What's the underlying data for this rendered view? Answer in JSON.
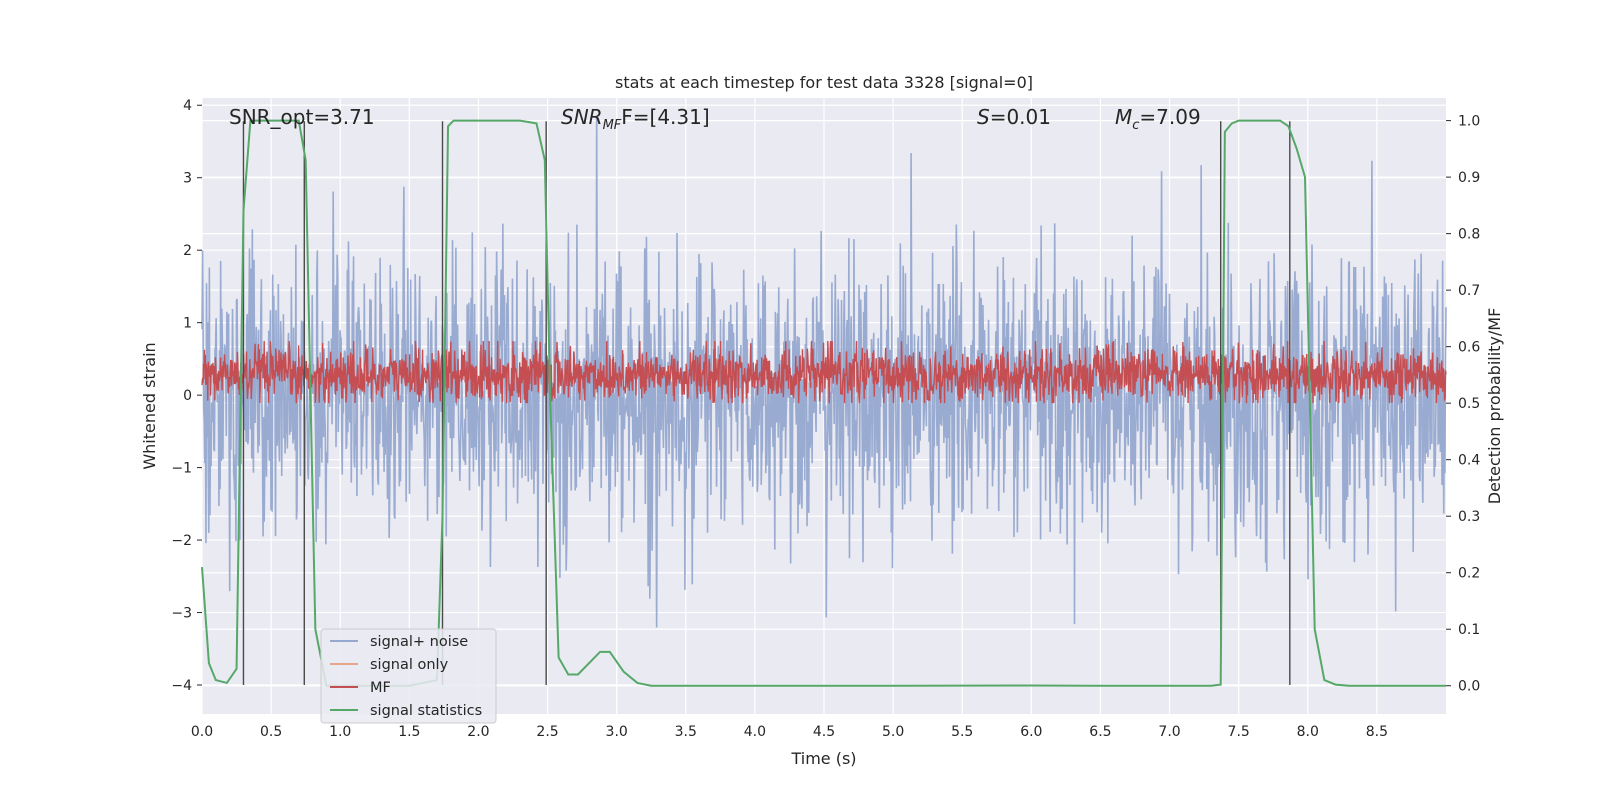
{
  "chart_data": {
    "type": "line",
    "title": "stats at each timestep for test data 3328 [signal=0]",
    "xlabel": "Time (s)",
    "ylabel": "Whitened strain",
    "ylabel_right": "Detection probability/MF",
    "xlim": [
      0.0,
      9.0
    ],
    "ylim": [
      -4.4,
      4.1
    ],
    "ylim_right": [
      -0.05,
      1.04
    ],
    "x_ticks": [
      "0.0",
      "0.5",
      "1.0",
      "1.5",
      "2.0",
      "2.5",
      "3.0",
      "3.5",
      "4.0",
      "4.5",
      "5.0",
      "5.5",
      "6.0",
      "6.5",
      "7.0",
      "7.5",
      "8.0",
      "8.5"
    ],
    "x_tick_values": [
      0.0,
      0.5,
      1.0,
      1.5,
      2.0,
      2.5,
      3.0,
      3.5,
      4.0,
      4.5,
      5.0,
      5.5,
      6.0,
      6.5,
      7.0,
      7.5,
      8.0,
      8.5
    ],
    "y_ticks": [
      "−4",
      "−3",
      "−2",
      "−1",
      "0",
      "1",
      "2",
      "3",
      "4"
    ],
    "y_tick_values": [
      -4,
      -3,
      -2,
      -1,
      0,
      1,
      2,
      3,
      4
    ],
    "y_ticks_right": [
      "0.0",
      "0.1",
      "0.2",
      "0.3",
      "0.4",
      "0.5",
      "0.6",
      "0.7",
      "0.8",
      "0.9",
      "1.0"
    ],
    "y_tick_values_right": [
      0.0,
      0.1,
      0.2,
      0.3,
      0.4,
      0.5,
      0.6,
      0.7,
      0.8,
      0.9,
      1.0
    ],
    "grid": true,
    "legend_position": "lower-left",
    "annotations": {
      "snr_opt": "SNR_opt=3.71",
      "snr_mf_main": "SNR",
      "snr_mf_sub": "MF",
      "snr_mf_rest": "F=[4.31]",
      "s_main": "S",
      "s_rest": "=0.01",
      "mc_main": "M",
      "mc_sub": "c",
      "mc_rest": "=7.09"
    },
    "vertical_lines_x": [
      0.3,
      0.74,
      1.74,
      2.49,
      7.37,
      7.87
    ],
    "vertical_lines_ylim": [
      -4.0,
      3.78
    ],
    "series": [
      {
        "name": "signal+ noise",
        "color": "#95a8cf",
        "axis": "left",
        "description": "dense noise, envelope approx",
        "x_range": [
          0.0,
          9.0
        ],
        "values_approx": {
          "typical_band": [
            -1.7,
            1.5
          ],
          "max": 3.9,
          "min": -3.6
        }
      },
      {
        "name": "signal only",
        "color": "#e8a58d",
        "axis": "left",
        "values": []
      },
      {
        "name": "MF",
        "color": "#c44e52",
        "axis": "right",
        "x_range": [
          0.0,
          9.0
        ],
        "values_approx": {
          "band": [
            0.515,
            0.585
          ],
          "max": 0.61,
          "min": 0.5
        }
      },
      {
        "name": "signal statistics",
        "color": "#55a868",
        "axis": "right",
        "x": [
          0.0,
          0.05,
          0.1,
          0.18,
          0.25,
          0.3,
          0.35,
          0.4,
          0.5,
          0.6,
          0.7,
          0.75,
          0.82,
          0.9,
          1.2,
          1.5,
          1.7,
          1.74,
          1.78,
          1.82,
          1.9,
          2.1,
          2.3,
          2.42,
          2.48,
          2.52,
          2.58,
          2.65,
          2.72,
          2.8,
          2.88,
          2.95,
          3.05,
          3.15,
          3.25,
          3.5,
          4.0,
          5.0,
          6.0,
          6.5,
          7.0,
          7.3,
          7.37,
          7.4,
          7.45,
          7.5,
          7.6,
          7.8,
          7.86,
          7.92,
          7.98,
          8.05,
          8.12,
          8.2,
          8.3,
          8.5,
          9.0
        ],
        "y": [
          0.21,
          0.04,
          0.01,
          0.005,
          0.03,
          0.84,
          1.0,
          1.0,
          1.0,
          1.0,
          1.0,
          0.93,
          0.1,
          0.0,
          0.0,
          0.0,
          0.01,
          0.3,
          0.99,
          1.0,
          1.0,
          1.0,
          1.0,
          0.995,
          0.93,
          0.5,
          0.05,
          0.02,
          0.02,
          0.04,
          0.06,
          0.06,
          0.025,
          0.005,
          0.0,
          0.0,
          0.0,
          0.0,
          0.0005,
          0.0,
          0.0,
          0.0,
          0.002,
          0.98,
          0.995,
          1.0,
          1.0,
          1.0,
          0.99,
          0.95,
          0.9,
          0.1,
          0.01,
          0.002,
          0.0,
          0.0,
          0.0
        ]
      }
    ]
  }
}
